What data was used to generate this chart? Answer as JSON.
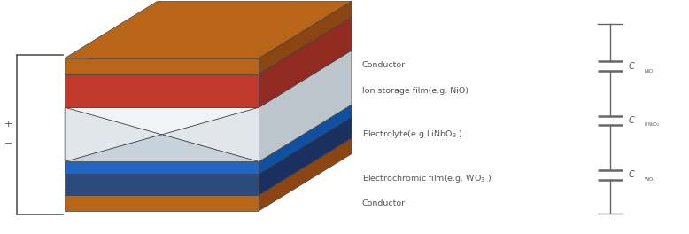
{
  "bg_color": "#ffffff",
  "conductor_color": "#b8651a",
  "conductor_dark": "#8B4513",
  "ion_storage_color": "#c0392b",
  "ion_storage_dark": "#922b21",
  "ion_storage_top": "#c0392b",
  "electrolyte_light": "#d4dce4",
  "electrolyte_mid": "#bcc4cc",
  "electrolyte_dark": "#a8b0b8",
  "electrochromic_front": "#2c4a7c",
  "electrochromic_top": "#3a5a9a",
  "electrochromic_dark": "#1a3060",
  "blue_bright_front": "#2166c4",
  "blue_bright_top": "#3070d0",
  "blue_bright_dark": "#1050a0",
  "text_color": "#555555",
  "line_color": "#555555",
  "edge_color": "#444444",
  "labels": {
    "conductor_top": "Conductor",
    "ion_storage": "Ion storage film(e.g. NiO)",
    "electrolyte": "Electrolyte(e.g.LiNbO$_3$ )",
    "electrochromic": "Electrochromic film(e.g. WO$_3$ )",
    "conductor_bottom": "Conductor"
  }
}
